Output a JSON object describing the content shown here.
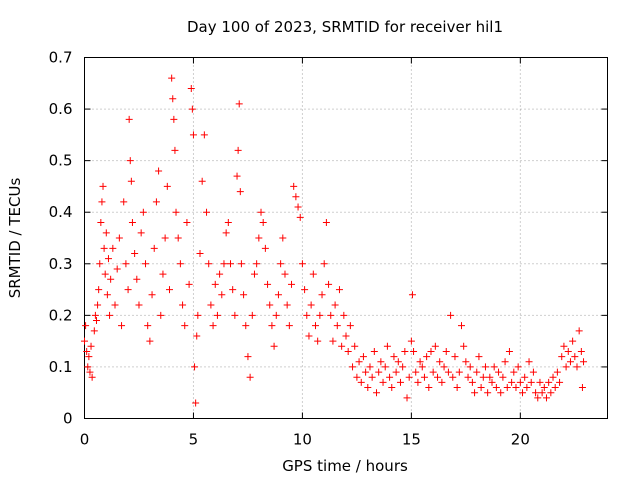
{
  "chart_data": {
    "type": "scatter",
    "title": "Day 100 of 2023, SRMTID for receiver hil1",
    "xlabel": "GPS time / hours",
    "ylabel": "SRMTID / TECUs",
    "xlim": [
      0,
      24
    ],
    "ylim": [
      0,
      0.7
    ],
    "xticks": [
      "0",
      "5",
      "10",
      "15",
      "20"
    ],
    "yticks": [
      "0",
      "0.1",
      "0.2",
      "0.3",
      "0.4",
      "0.5",
      "0.6",
      "0.7"
    ],
    "grid": true,
    "marker": "+",
    "color": "#ff0000",
    "series": [
      {
        "name": "SRMTID",
        "points": [
          [
            0.0,
            0.15
          ],
          [
            0.05,
            0.18
          ],
          [
            0.1,
            0.13
          ],
          [
            0.15,
            0.1
          ],
          [
            0.2,
            0.12
          ],
          [
            0.25,
            0.09
          ],
          [
            0.3,
            0.14
          ],
          [
            0.35,
            0.08
          ],
          [
            0.45,
            0.17
          ],
          [
            0.5,
            0.2
          ],
          [
            0.55,
            0.19
          ],
          [
            0.6,
            0.22
          ],
          [
            0.65,
            0.25
          ],
          [
            0.7,
            0.3
          ],
          [
            0.75,
            0.38
          ],
          [
            0.8,
            0.42
          ],
          [
            0.85,
            0.45
          ],
          [
            0.9,
            0.33
          ],
          [
            0.95,
            0.28
          ],
          [
            1.0,
            0.36
          ],
          [
            1.05,
            0.24
          ],
          [
            1.1,
            0.31
          ],
          [
            1.15,
            0.2
          ],
          [
            1.2,
            0.27
          ],
          [
            1.3,
            0.33
          ],
          [
            1.4,
            0.22
          ],
          [
            1.5,
            0.29
          ],
          [
            1.6,
            0.35
          ],
          [
            1.7,
            0.18
          ],
          [
            1.8,
            0.42
          ],
          [
            1.9,
            0.3
          ],
          [
            2.0,
            0.25
          ],
          [
            2.05,
            0.58
          ],
          [
            2.1,
            0.5
          ],
          [
            2.15,
            0.46
          ],
          [
            2.2,
            0.38
          ],
          [
            2.3,
            0.32
          ],
          [
            2.4,
            0.27
          ],
          [
            2.5,
            0.22
          ],
          [
            2.6,
            0.36
          ],
          [
            2.7,
            0.4
          ],
          [
            2.8,
            0.3
          ],
          [
            2.9,
            0.18
          ],
          [
            3.0,
            0.15
          ],
          [
            3.1,
            0.24
          ],
          [
            3.2,
            0.33
          ],
          [
            3.3,
            0.42
          ],
          [
            3.4,
            0.48
          ],
          [
            3.5,
            0.2
          ],
          [
            3.6,
            0.28
          ],
          [
            3.7,
            0.35
          ],
          [
            3.8,
            0.45
          ],
          [
            3.9,
            0.25
          ],
          [
            4.0,
            0.66
          ],
          [
            4.05,
            0.62
          ],
          [
            4.1,
            0.58
          ],
          [
            4.15,
            0.52
          ],
          [
            4.2,
            0.4
          ],
          [
            4.3,
            0.35
          ],
          [
            4.4,
            0.3
          ],
          [
            4.5,
            0.22
          ],
          [
            4.6,
            0.18
          ],
          [
            4.7,
            0.38
          ],
          [
            4.8,
            0.26
          ],
          [
            4.9,
            0.64
          ],
          [
            4.95,
            0.6
          ],
          [
            5.0,
            0.55
          ],
          [
            5.05,
            0.1
          ],
          [
            5.1,
            0.03
          ],
          [
            5.15,
            0.16
          ],
          [
            5.2,
            0.2
          ],
          [
            5.3,
            0.32
          ],
          [
            5.4,
            0.46
          ],
          [
            5.5,
            0.55
          ],
          [
            5.6,
            0.4
          ],
          [
            5.7,
            0.3
          ],
          [
            5.8,
            0.22
          ],
          [
            5.9,
            0.18
          ],
          [
            6.0,
            0.26
          ],
          [
            6.1,
            0.2
          ],
          [
            6.2,
            0.28
          ],
          [
            6.3,
            0.24
          ],
          [
            6.4,
            0.3
          ],
          [
            6.5,
            0.36
          ],
          [
            6.6,
            0.38
          ],
          [
            6.7,
            0.3
          ],
          [
            6.8,
            0.25
          ],
          [
            6.9,
            0.2
          ],
          [
            7.0,
            0.47
          ],
          [
            7.05,
            0.52
          ],
          [
            7.1,
            0.61
          ],
          [
            7.15,
            0.44
          ],
          [
            7.2,
            0.3
          ],
          [
            7.3,
            0.24
          ],
          [
            7.4,
            0.18
          ],
          [
            7.5,
            0.12
          ],
          [
            7.6,
            0.08
          ],
          [
            7.7,
            0.2
          ],
          [
            7.8,
            0.28
          ],
          [
            7.9,
            0.3
          ],
          [
            8.0,
            0.35
          ],
          [
            8.1,
            0.4
          ],
          [
            8.2,
            0.38
          ],
          [
            8.3,
            0.33
          ],
          [
            8.4,
            0.26
          ],
          [
            8.5,
            0.22
          ],
          [
            8.6,
            0.18
          ],
          [
            8.7,
            0.14
          ],
          [
            8.8,
            0.2
          ],
          [
            8.9,
            0.24
          ],
          [
            9.0,
            0.3
          ],
          [
            9.1,
            0.35
          ],
          [
            9.2,
            0.28
          ],
          [
            9.3,
            0.22
          ],
          [
            9.4,
            0.18
          ],
          [
            9.5,
            0.26
          ],
          [
            9.6,
            0.45
          ],
          [
            9.7,
            0.43
          ],
          [
            9.8,
            0.41
          ],
          [
            9.9,
            0.39
          ],
          [
            10.0,
            0.3
          ],
          [
            10.1,
            0.25
          ],
          [
            10.2,
            0.2
          ],
          [
            10.3,
            0.16
          ],
          [
            10.4,
            0.22
          ],
          [
            10.5,
            0.28
          ],
          [
            10.6,
            0.18
          ],
          [
            10.7,
            0.15
          ],
          [
            10.8,
            0.2
          ],
          [
            10.9,
            0.24
          ],
          [
            11.0,
            0.3
          ],
          [
            11.1,
            0.38
          ],
          [
            11.2,
            0.26
          ],
          [
            11.3,
            0.2
          ],
          [
            11.4,
            0.15
          ],
          [
            11.5,
            0.22
          ],
          [
            11.6,
            0.18
          ],
          [
            11.7,
            0.25
          ],
          [
            11.8,
            0.14
          ],
          [
            11.9,
            0.2
          ],
          [
            12.0,
            0.16
          ],
          [
            12.1,
            0.13
          ],
          [
            12.2,
            0.18
          ],
          [
            12.3,
            0.1
          ],
          [
            12.4,
            0.14
          ],
          [
            12.5,
            0.08
          ],
          [
            12.6,
            0.11
          ],
          [
            12.7,
            0.07
          ],
          [
            12.8,
            0.12
          ],
          [
            12.9,
            0.09
          ],
          [
            13.0,
            0.06
          ],
          [
            13.1,
            0.1
          ],
          [
            13.2,
            0.08
          ],
          [
            13.3,
            0.13
          ],
          [
            13.4,
            0.05
          ],
          [
            13.5,
            0.09
          ],
          [
            13.6,
            0.11
          ],
          [
            13.7,
            0.07
          ],
          [
            13.8,
            0.1
          ],
          [
            13.9,
            0.14
          ],
          [
            14.0,
            0.08
          ],
          [
            14.1,
            0.06
          ],
          [
            14.2,
            0.12
          ],
          [
            14.3,
            0.09
          ],
          [
            14.4,
            0.11
          ],
          [
            14.5,
            0.07
          ],
          [
            14.6,
            0.1
          ],
          [
            14.7,
            0.13
          ],
          [
            14.8,
            0.04
          ],
          [
            14.9,
            0.08
          ],
          [
            15.0,
            0.15
          ],
          [
            15.05,
            0.24
          ],
          [
            15.1,
            0.13
          ],
          [
            15.2,
            0.09
          ],
          [
            15.3,
            0.07
          ],
          [
            15.4,
            0.11
          ],
          [
            15.5,
            0.1
          ],
          [
            15.6,
            0.08
          ],
          [
            15.7,
            0.12
          ],
          [
            15.8,
            0.06
          ],
          [
            15.9,
            0.13
          ],
          [
            16.0,
            0.09
          ],
          [
            16.1,
            0.14
          ],
          [
            16.2,
            0.08
          ],
          [
            16.3,
            0.11
          ],
          [
            16.4,
            0.07
          ],
          [
            16.5,
            0.1
          ],
          [
            16.6,
            0.13
          ],
          [
            16.7,
            0.09
          ],
          [
            16.8,
            0.2
          ],
          [
            16.9,
            0.08
          ],
          [
            17.0,
            0.12
          ],
          [
            17.1,
            0.06
          ],
          [
            17.2,
            0.09
          ],
          [
            17.3,
            0.18
          ],
          [
            17.4,
            0.14
          ],
          [
            17.5,
            0.11
          ],
          [
            17.6,
            0.08
          ],
          [
            17.7,
            0.1
          ],
          [
            17.8,
            0.07
          ],
          [
            17.9,
            0.05
          ],
          [
            18.0,
            0.09
          ],
          [
            18.1,
            0.12
          ],
          [
            18.2,
            0.06
          ],
          [
            18.3,
            0.08
          ],
          [
            18.4,
            0.1
          ],
          [
            18.5,
            0.05
          ],
          [
            18.6,
            0.08
          ],
          [
            18.7,
            0.07
          ],
          [
            18.8,
            0.1
          ],
          [
            18.9,
            0.06
          ],
          [
            19.0,
            0.09
          ],
          [
            19.1,
            0.05
          ],
          [
            19.2,
            0.08
          ],
          [
            19.3,
            0.11
          ],
          [
            19.4,
            0.06
          ],
          [
            19.5,
            0.13
          ],
          [
            19.6,
            0.07
          ],
          [
            19.7,
            0.09
          ],
          [
            19.8,
            0.06
          ],
          [
            19.9,
            0.1
          ],
          [
            20.0,
            0.07
          ],
          [
            20.1,
            0.05
          ],
          [
            20.2,
            0.08
          ],
          [
            20.3,
            0.06
          ],
          [
            20.4,
            0.11
          ],
          [
            20.5,
            0.07
          ],
          [
            20.6,
            0.09
          ],
          [
            20.7,
            0.05
          ],
          [
            20.8,
            0.04
          ],
          [
            20.9,
            0.07
          ],
          [
            21.0,
            0.05
          ],
          [
            21.1,
            0.06
          ],
          [
            21.2,
            0.04
          ],
          [
            21.3,
            0.07
          ],
          [
            21.4,
            0.05
          ],
          [
            21.5,
            0.08
          ],
          [
            21.6,
            0.06
          ],
          [
            21.7,
            0.09
          ],
          [
            21.8,
            0.07
          ],
          [
            21.9,
            0.12
          ],
          [
            22.0,
            0.14
          ],
          [
            22.1,
            0.1
          ],
          [
            22.2,
            0.13
          ],
          [
            22.3,
            0.11
          ],
          [
            22.4,
            0.15
          ],
          [
            22.5,
            0.12
          ],
          [
            22.6,
            0.1
          ],
          [
            22.7,
            0.17
          ],
          [
            22.8,
            0.13
          ],
          [
            22.85,
            0.06
          ],
          [
            22.9,
            0.11
          ]
        ]
      }
    ]
  }
}
